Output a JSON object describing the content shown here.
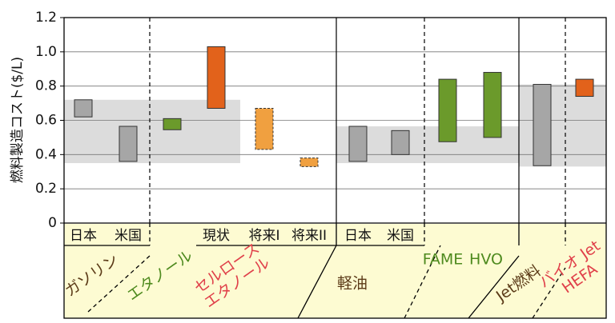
{
  "chart_data": {
    "type": "range-bar",
    "y_label": "燃料製造コスト($/L)",
    "ylim": [
      0,
      1.2
    ],
    "yticks": [
      0,
      0.2,
      0.4,
      0.6,
      0.8,
      {
        "value": 1,
        "label": "1.0"
      },
      1.2
    ],
    "grid": true,
    "categories": [
      "日本",
      "米国",
      null,
      "現状",
      "将来I",
      "将来II",
      "日本",
      "米国",
      null,
      null,
      null,
      null
    ],
    "low": [
      0.62,
      0.36,
      0.545,
      0.67,
      0.43,
      0.33,
      0.36,
      0.4,
      0.475,
      0.5,
      0.335,
      0.74
    ],
    "high": [
      0.72,
      0.565,
      0.61,
      1.03,
      0.67,
      0.38,
      0.565,
      0.54,
      0.84,
      0.88,
      0.81,
      0.84
    ],
    "colors": [
      "#a6a6a6",
      "#a6a6a6",
      "#6b9a2b",
      "#e2621b",
      "#f0a040",
      "#f0a040",
      "#a6a6a6",
      "#a6a6a6",
      "#6b9a2b",
      "#6b9a2b",
      "#a6a6a6",
      "#e2621b"
    ],
    "border_styles": [
      "solid",
      "solid",
      "solid",
      "solid",
      "dashed",
      "dashed",
      "solid",
      "solid",
      "solid",
      "solid",
      "solid",
      "solid"
    ],
    "bands": [
      {
        "low": 0.35,
        "high": 0.72
      },
      {
        "low": 0.35,
        "high": 0.565
      },
      {
        "low": 0.33,
        "high": 0.81
      }
    ],
    "band_color": "#dcdcdc",
    "groups": [
      {
        "lines": [
          "ガソリン"
        ],
        "color": "#5b3a17"
      },
      {
        "lines": [
          "エタノール"
        ],
        "color": "#4e8a1e"
      },
      {
        "lines": [
          "セルロース",
          "エタノール"
        ],
        "color": "#e0404a"
      },
      {
        "lines": [
          "軽油"
        ],
        "color": "#5b3a17"
      },
      {
        "lines": [
          "FAME"
        ],
        "color": "#4e8a1e"
      },
      {
        "lines": [
          "HVO"
        ],
        "color": "#4e8a1e"
      },
      {
        "lines": [
          "Jet燃料"
        ],
        "color": "#5b3a17"
      },
      {
        "lines": [
          "バイオ Jet",
          "HEFA"
        ],
        "color": "#e0404a"
      }
    ]
  }
}
